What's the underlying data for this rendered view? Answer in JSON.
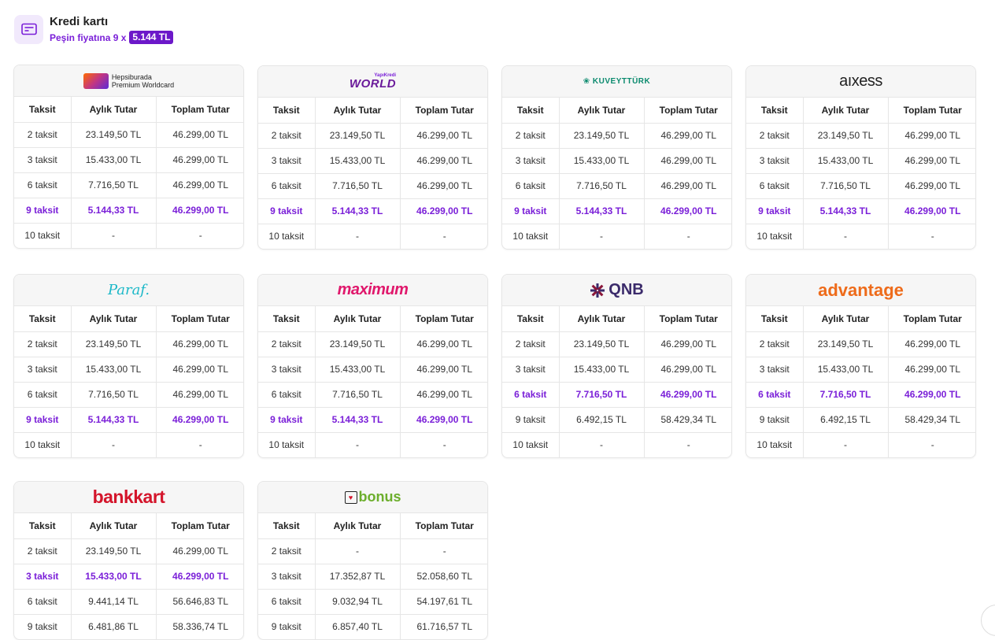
{
  "header": {
    "title": "Kredi kartı",
    "subtitle_prefix": "Peşin fiyatına 9 x",
    "price_badge": "5.144 TL",
    "icon": "credit-card-icon",
    "accent_color": "#7a1fd8"
  },
  "columns": [
    "Taksit",
    "Aylık Tutar",
    "Toplam Tutar"
  ],
  "cards": [
    {
      "logo_kind": "hepsiburada",
      "logo_lines": [
        "Hepsiburada",
        "Premium Worldcard"
      ],
      "rows": [
        {
          "taksit": "2 taksit",
          "aylik": "23.149,50 TL",
          "toplam": "46.299,00 TL",
          "highlight": false
        },
        {
          "taksit": "3 taksit",
          "aylik": "15.433,00 TL",
          "toplam": "46.299,00 TL",
          "highlight": false
        },
        {
          "taksit": "6 taksit",
          "aylik": "7.716,50 TL",
          "toplam": "46.299,00 TL",
          "highlight": false
        },
        {
          "taksit": "9 taksit",
          "aylik": "5.144,33 TL",
          "toplam": "46.299,00 TL",
          "highlight": true
        },
        {
          "taksit": "10 taksit",
          "aylik": "-",
          "toplam": "-",
          "highlight": false
        }
      ]
    },
    {
      "logo_kind": "world",
      "logo_lines": [
        "YapıKredi",
        "WORLD"
      ],
      "rows": [
        {
          "taksit": "2 taksit",
          "aylik": "23.149,50 TL",
          "toplam": "46.299,00 TL",
          "highlight": false
        },
        {
          "taksit": "3 taksit",
          "aylik": "15.433,00 TL",
          "toplam": "46.299,00 TL",
          "highlight": false
        },
        {
          "taksit": "6 taksit",
          "aylik": "7.716,50 TL",
          "toplam": "46.299,00 TL",
          "highlight": false
        },
        {
          "taksit": "9 taksit",
          "aylik": "5.144,33 TL",
          "toplam": "46.299,00 TL",
          "highlight": true
        },
        {
          "taksit": "10 taksit",
          "aylik": "-",
          "toplam": "-",
          "highlight": false
        }
      ]
    },
    {
      "logo_kind": "kuveyt",
      "logo_lines": [
        "KUVEYTTÜRK"
      ],
      "rows": [
        {
          "taksit": "2 taksit",
          "aylik": "23.149,50 TL",
          "toplam": "46.299,00 TL",
          "highlight": false
        },
        {
          "taksit": "3 taksit",
          "aylik": "15.433,00 TL",
          "toplam": "46.299,00 TL",
          "highlight": false
        },
        {
          "taksit": "6 taksit",
          "aylik": "7.716,50 TL",
          "toplam": "46.299,00 TL",
          "highlight": false
        },
        {
          "taksit": "9 taksit",
          "aylik": "5.144,33 TL",
          "toplam": "46.299,00 TL",
          "highlight": true
        },
        {
          "taksit": "10 taksit",
          "aylik": "-",
          "toplam": "-",
          "highlight": false
        }
      ]
    },
    {
      "logo_kind": "axess",
      "logo_lines": [
        "aıxess"
      ],
      "rows": [
        {
          "taksit": "2 taksit",
          "aylik": "23.149,50 TL",
          "toplam": "46.299,00 TL",
          "highlight": false
        },
        {
          "taksit": "3 taksit",
          "aylik": "15.433,00 TL",
          "toplam": "46.299,00 TL",
          "highlight": false
        },
        {
          "taksit": "6 taksit",
          "aylik": "7.716,50 TL",
          "toplam": "46.299,00 TL",
          "highlight": false
        },
        {
          "taksit": "9 taksit",
          "aylik": "5.144,33 TL",
          "toplam": "46.299,00 TL",
          "highlight": true
        },
        {
          "taksit": "10 taksit",
          "aylik": "-",
          "toplam": "-",
          "highlight": false
        }
      ]
    },
    {
      "logo_kind": "paraf",
      "logo_lines": [
        "Paraf."
      ],
      "rows": [
        {
          "taksit": "2 taksit",
          "aylik": "23.149,50 TL",
          "toplam": "46.299,00 TL",
          "highlight": false
        },
        {
          "taksit": "3 taksit",
          "aylik": "15.433,00 TL",
          "toplam": "46.299,00 TL",
          "highlight": false
        },
        {
          "taksit": "6 taksit",
          "aylik": "7.716,50 TL",
          "toplam": "46.299,00 TL",
          "highlight": false
        },
        {
          "taksit": "9 taksit",
          "aylik": "5.144,33 TL",
          "toplam": "46.299,00 TL",
          "highlight": true
        },
        {
          "taksit": "10 taksit",
          "aylik": "-",
          "toplam": "-",
          "highlight": false
        }
      ]
    },
    {
      "logo_kind": "maximum",
      "logo_lines": [
        "maximum"
      ],
      "rows": [
        {
          "taksit": "2 taksit",
          "aylik": "23.149,50 TL",
          "toplam": "46.299,00 TL",
          "highlight": false
        },
        {
          "taksit": "3 taksit",
          "aylik": "15.433,00 TL",
          "toplam": "46.299,00 TL",
          "highlight": false
        },
        {
          "taksit": "6 taksit",
          "aylik": "7.716,50 TL",
          "toplam": "46.299,00 TL",
          "highlight": false
        },
        {
          "taksit": "9 taksit",
          "aylik": "5.144,33 TL",
          "toplam": "46.299,00 TL",
          "highlight": true
        },
        {
          "taksit": "10 taksit",
          "aylik": "-",
          "toplam": "-",
          "highlight": false
        }
      ]
    },
    {
      "logo_kind": "qnb",
      "logo_lines": [
        "QNB"
      ],
      "rows": [
        {
          "taksit": "2 taksit",
          "aylik": "23.149,50 TL",
          "toplam": "46.299,00 TL",
          "highlight": false
        },
        {
          "taksit": "3 taksit",
          "aylik": "15.433,00 TL",
          "toplam": "46.299,00 TL",
          "highlight": false
        },
        {
          "taksit": "6 taksit",
          "aylik": "7.716,50 TL",
          "toplam": "46.299,00 TL",
          "highlight": true
        },
        {
          "taksit": "9 taksit",
          "aylik": "6.492,15 TL",
          "toplam": "58.429,34 TL",
          "highlight": false
        },
        {
          "taksit": "10 taksit",
          "aylik": "-",
          "toplam": "-",
          "highlight": false
        }
      ]
    },
    {
      "logo_kind": "advantage",
      "logo_lines": [
        "advantage"
      ],
      "rows": [
        {
          "taksit": "2 taksit",
          "aylik": "23.149,50 TL",
          "toplam": "46.299,00 TL",
          "highlight": false
        },
        {
          "taksit": "3 taksit",
          "aylik": "15.433,00 TL",
          "toplam": "46.299,00 TL",
          "highlight": false
        },
        {
          "taksit": "6 taksit",
          "aylik": "7.716,50 TL",
          "toplam": "46.299,00 TL",
          "highlight": true
        },
        {
          "taksit": "9 taksit",
          "aylik": "6.492,15 TL",
          "toplam": "58.429,34 TL",
          "highlight": false
        },
        {
          "taksit": "10 taksit",
          "aylik": "-",
          "toplam": "-",
          "highlight": false
        }
      ]
    },
    {
      "logo_kind": "bankkart",
      "logo_lines": [
        "bankkart"
      ],
      "rows": [
        {
          "taksit": "2 taksit",
          "aylik": "23.149,50 TL",
          "toplam": "46.299,00 TL",
          "highlight": false
        },
        {
          "taksit": "3 taksit",
          "aylik": "15.433,00 TL",
          "toplam": "46.299,00 TL",
          "highlight": true
        },
        {
          "taksit": "6 taksit",
          "aylik": "9.441,14 TL",
          "toplam": "56.646,83 TL",
          "highlight": false
        },
        {
          "taksit": "9 taksit",
          "aylik": "6.481,86 TL",
          "toplam": "58.336,74 TL",
          "highlight": false
        }
      ]
    },
    {
      "logo_kind": "bonus",
      "logo_lines": [
        "bonus"
      ],
      "rows": [
        {
          "taksit": "2 taksit",
          "aylik": "-",
          "toplam": "-",
          "highlight": false
        },
        {
          "taksit": "3 taksit",
          "aylik": "17.352,87 TL",
          "toplam": "52.058,60 TL",
          "highlight": false
        },
        {
          "taksit": "6 taksit",
          "aylik": "9.032,94 TL",
          "toplam": "54.197,61 TL",
          "highlight": false
        },
        {
          "taksit": "9 taksit",
          "aylik": "6.857,40 TL",
          "toplam": "61.716,57 TL",
          "highlight": false
        }
      ]
    }
  ]
}
